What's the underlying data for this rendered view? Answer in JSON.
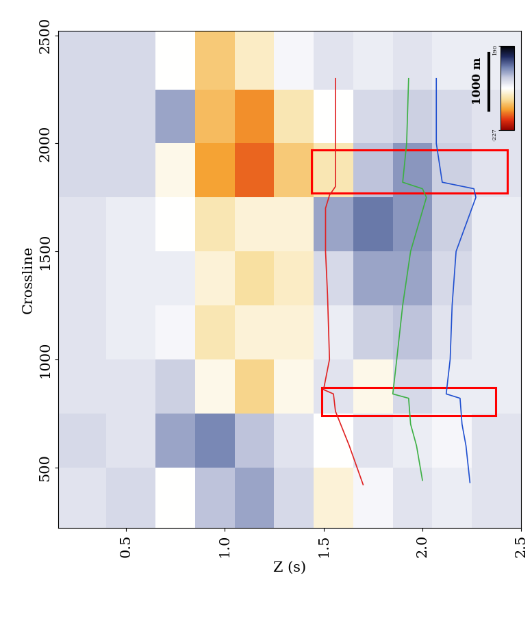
{
  "chart_data": {
    "type": "heatmap",
    "x_label": "Z (s)",
    "y_label": "Crossline",
    "xlim": [
      0.16,
      2.5
    ],
    "ylim": [
      220,
      2520
    ],
    "xticks": [
      0.5,
      1.0,
      1.5,
      2.0,
      2.5
    ],
    "yticks": [
      500,
      1000,
      1500,
      2000,
      2500
    ],
    "z_edges": [
      0.16,
      0.4,
      0.65,
      0.85,
      1.05,
      1.25,
      1.45,
      1.65,
      1.85,
      2.05,
      2.25,
      2.5
    ],
    "crossline_edges": [
      220,
      500,
      750,
      1000,
      1250,
      1500,
      1750,
      2000,
      2250,
      2520
    ],
    "cells": [
      [
        10,
        20,
        -20,
        40,
        60,
        20,
        -40,
        -10,
        10,
        0,
        10
      ],
      [
        20,
        10,
        60,
        80,
        40,
        10,
        -20,
        10,
        0,
        -10,
        10
      ],
      [
        10,
        10,
        30,
        -30,
        -80,
        -30,
        10,
        -30,
        20,
        0,
        0
      ],
      [
        10,
        0,
        -10,
        -60,
        -40,
        -40,
        0,
        30,
        40,
        10,
        0
      ],
      [
        10,
        0,
        0,
        -40,
        -70,
        -50,
        20,
        60,
        60,
        20,
        0
      ],
      [
        10,
        0,
        -20,
        -60,
        -40,
        -40,
        60,
        90,
        70,
        30,
        0
      ],
      [
        20,
        20,
        -30,
        -120,
        -150,
        -90,
        -60,
        40,
        70,
        30,
        10
      ],
      [
        20,
        20,
        60,
        -100,
        -130,
        -60,
        -20,
        20,
        30,
        20,
        10
      ],
      [
        20,
        20,
        -20,
        -90,
        -50,
        -10,
        10,
        0,
        10,
        0,
        0
      ]
    ],
    "colorbar": {
      "range": [
        -227,
        190
      ],
      "ticks": [
        -227,
        190
      ]
    },
    "horizons": [
      {
        "color": "#e02020",
        "crossline": [
          420,
          600,
          760,
          840,
          860,
          1000,
          1300,
          1500,
          1700,
          1760,
          1800,
          2000,
          2300
        ],
        "z": [
          1.7,
          1.63,
          1.56,
          1.55,
          1.5,
          1.53,
          1.52,
          1.51,
          1.51,
          1.53,
          1.56,
          1.56,
          1.56
        ]
      },
      {
        "color": "#3cb043",
        "crossline": [
          440,
          600,
          700,
          820,
          840,
          1000,
          1250,
          1500,
          1750,
          1790,
          1820,
          2000,
          2300
        ],
        "z": [
          2.0,
          1.97,
          1.94,
          1.93,
          1.85,
          1.87,
          1.9,
          1.94,
          2.02,
          2.0,
          1.9,
          1.92,
          1.93
        ]
      },
      {
        "color": "#2050d0",
        "crossline": [
          430,
          600,
          700,
          820,
          840,
          1000,
          1250,
          1500,
          1750,
          1790,
          1820,
          2000,
          2300
        ],
        "z": [
          2.24,
          2.22,
          2.2,
          2.19,
          2.12,
          2.14,
          2.15,
          2.17,
          2.27,
          2.26,
          2.1,
          2.07,
          2.07
        ]
      }
    ],
    "boxes": [
      {
        "z": [
          1.44,
          2.43
        ],
        "crossline": [
          1770,
          1970
        ]
      },
      {
        "z": [
          1.49,
          2.37
        ],
        "crossline": [
          740,
          870
        ]
      }
    ],
    "scale_bar": "1000 m"
  }
}
